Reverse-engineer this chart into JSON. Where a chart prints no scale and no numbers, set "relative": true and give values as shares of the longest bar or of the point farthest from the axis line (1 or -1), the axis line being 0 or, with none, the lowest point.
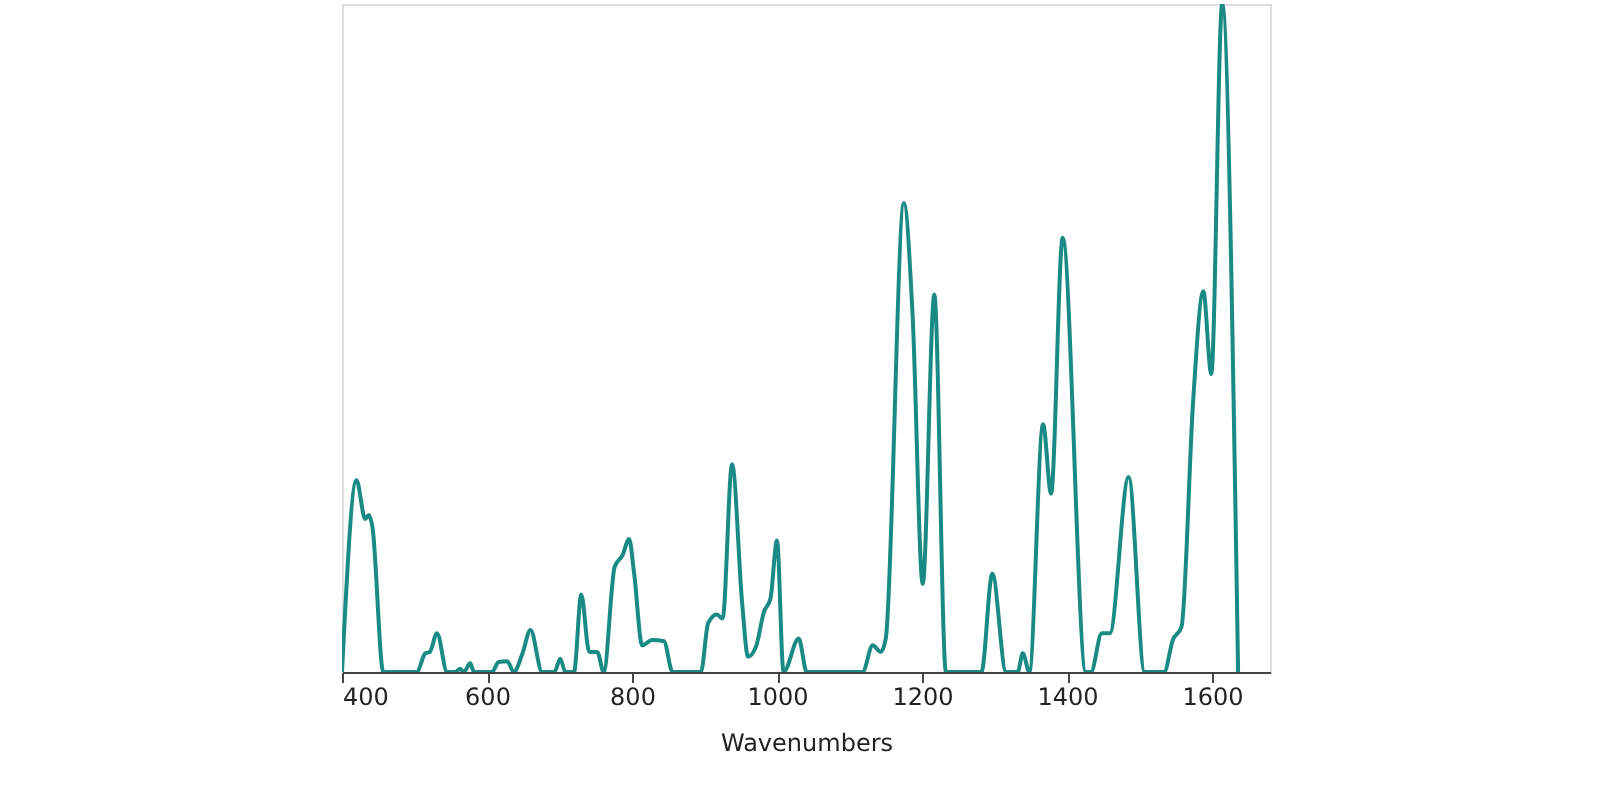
{
  "chart_data": {
    "type": "line",
    "xlabel": "Wavenumbers",
    "relative": true,
    "grid": false,
    "marker": "none",
    "line_style": "solid",
    "xlim": [
      400,
      1680
    ],
    "xticks": [
      400,
      600,
      800,
      1000,
      1200,
      1400,
      1600
    ],
    "series": [
      {
        "color": "#1a8a84",
        "x": [
          400,
          420,
          432,
          437,
          442,
          457,
          503,
          515,
          521,
          531,
          545,
          556,
          563,
          568,
          577,
          582,
          607,
          616,
          628,
          637,
          649,
          660,
          676,
          693,
          701,
          708,
          720,
          730,
          741,
          752,
          761,
          776,
          787,
          796,
          803,
          814,
          828,
          844,
          856,
          895,
          905,
          917,
          925,
          938,
          952,
          960,
          971,
          982,
          991,
          1000,
          1009,
          1030,
          1041,
          1118,
          1132,
          1143,
          1150,
          1175,
          1187,
          1201,
          1217,
          1233,
          1282,
          1297,
          1316,
          1332,
          1339,
          1348,
          1367,
          1378,
          1394,
          1426,
          1433,
          1448,
          1459,
          1485,
          1507,
          1534,
          1546,
          1558,
          1574,
          1588,
          1599,
          1614,
          1636
        ],
        "values": [
          0,
          0.287,
          0.229,
          0.235,
          0.217,
          0,
          0,
          0.028,
          0.03,
          0.058,
          0,
          0,
          0.005,
          0,
          0.013,
          0,
          0,
          0.015,
          0.016,
          0,
          0.028,
          0.063,
          0,
          0,
          0.02,
          0,
          0,
          0.116,
          0.03,
          0.03,
          0,
          0.157,
          0.175,
          0.199,
          0.147,
          0.04,
          0.048,
          0.046,
          0,
          0,
          0.073,
          0.086,
          0.08,
          0.311,
          0.102,
          0.023,
          0.038,
          0.09,
          0.11,
          0.197,
          0,
          0.05,
          0,
          0,
          0.04,
          0.03,
          0.05,
          0.702,
          0.535,
          0.132,
          0.565,
          0,
          0,
          0.147,
          0,
          0,
          0.028,
          0,
          0.371,
          0.267,
          0.65,
          0,
          0,
          0.058,
          0.058,
          0.292,
          0,
          0,
          0.048,
          0.068,
          0.406,
          0.57,
          0.446,
          1.0,
          0
        ]
      }
    ]
  }
}
